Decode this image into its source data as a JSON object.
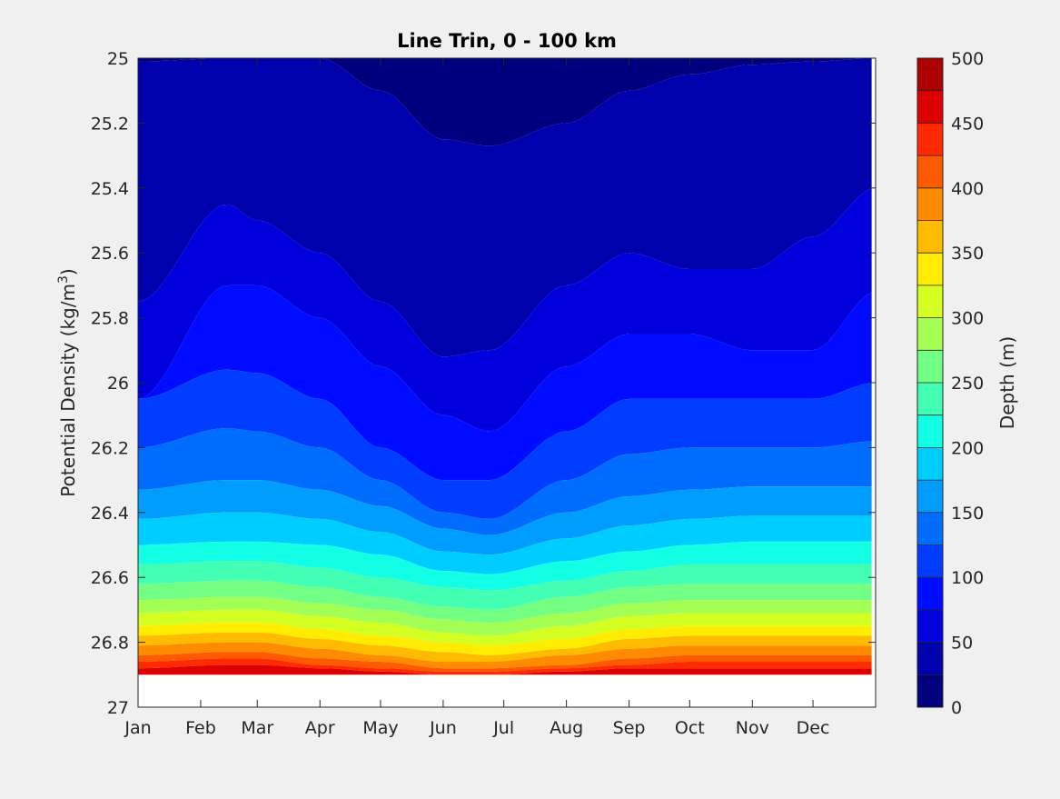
{
  "chart_data": {
    "type": "contour",
    "title": "Line Trin, 0 - 100 km",
    "ylabel": "Potential Density (kg/m",
    "ylabel_sup": "3",
    "ylabel_close": ")",
    "xlabel": "",
    "x_ticks": [
      "Jan",
      "Feb",
      "Mar",
      "Apr",
      "May",
      "Jun",
      "Jul",
      "Aug",
      "Sep",
      "Oct",
      "Nov",
      "Dec"
    ],
    "x_tick_days": [
      1,
      32,
      60,
      91,
      121,
      152,
      182,
      213,
      244,
      274,
      305,
      335
    ],
    "xlim": [
      1,
      366
    ],
    "y_ticks": [
      "25",
      "25.2",
      "25.4",
      "25.6",
      "25.8",
      "26",
      "26.2",
      "26.4",
      "26.6",
      "26.8",
      "27"
    ],
    "ylim": [
      25,
      27
    ],
    "y_reversed": true,
    "colorbar": {
      "label": "Depth (m)",
      "ticks": [
        "0",
        "50",
        "100",
        "150",
        "200",
        "250",
        "300",
        "350",
        "400",
        "450",
        "500"
      ],
      "range": [
        0,
        500
      ],
      "colors": [
        "#00007f",
        "#0000ad",
        "#0000dc",
        "#000cff",
        "#003dff",
        "#006dff",
        "#009dff",
        "#00cdff",
        "#12ffe5",
        "#43ffb4",
        "#73ff84",
        "#a3ff54",
        "#d4ff23",
        "#ffec00",
        "#ffbb00",
        "#ff8b00",
        "#ff5a00",
        "#ff2a00",
        "#dc0000",
        "#ad0000"
      ]
    },
    "contour_levels": [
      {
        "depth": 25,
        "density": [
          25.01,
          25.0,
          25.0,
          25.0,
          25.1,
          25.25,
          25.27,
          25.2,
          25.1,
          25.05,
          25.02,
          25.01,
          25.0
        ],
        "note": ""
      },
      {
        "depth": 50,
        "density": [
          25.75,
          25.45,
          25.5,
          25.6,
          25.75,
          25.92,
          25.9,
          25.7,
          25.6,
          25.65,
          25.65,
          25.55,
          25.4
        ]
      },
      {
        "depth": 75,
        "density": [
          26.05,
          25.7,
          25.7,
          25.8,
          25.95,
          26.1,
          26.15,
          25.95,
          25.85,
          25.85,
          25.9,
          25.9,
          25.72
        ]
      },
      {
        "depth": 100,
        "density": [
          26.05,
          25.96,
          25.97,
          26.05,
          26.2,
          26.3,
          26.3,
          26.15,
          26.05,
          26.05,
          26.05,
          26.05,
          26.0
        ]
      },
      {
        "depth": 125,
        "density": [
          26.2,
          26.14,
          26.15,
          26.2,
          26.3,
          26.4,
          26.42,
          26.3,
          26.22,
          26.2,
          26.2,
          26.2,
          26.18
        ]
      },
      {
        "depth": 150,
        "density": [
          26.33,
          26.3,
          26.3,
          26.33,
          26.38,
          26.45,
          26.47,
          26.4,
          26.35,
          26.33,
          26.32,
          26.32,
          26.32
        ]
      },
      {
        "depth": 175,
        "density": [
          26.42,
          26.4,
          26.4,
          26.42,
          26.46,
          26.52,
          26.53,
          26.48,
          26.44,
          26.42,
          26.41,
          26.41,
          26.41
        ]
      },
      {
        "depth": 200,
        "density": [
          26.5,
          26.49,
          26.49,
          26.5,
          26.53,
          26.58,
          26.59,
          26.55,
          26.52,
          26.5,
          26.49,
          26.49,
          26.49
        ]
      },
      {
        "depth": 225,
        "density": [
          26.56,
          26.55,
          26.55,
          26.57,
          26.6,
          26.63,
          26.64,
          26.61,
          26.58,
          26.56,
          26.56,
          26.56,
          26.56
        ]
      },
      {
        "depth": 250,
        "density": [
          26.62,
          26.61,
          26.61,
          26.63,
          26.66,
          26.69,
          26.7,
          26.66,
          26.63,
          26.62,
          26.62,
          26.62,
          26.62
        ]
      },
      {
        "depth": 275,
        "density": [
          26.67,
          26.66,
          26.66,
          26.68,
          26.7,
          26.73,
          26.74,
          26.71,
          26.68,
          26.67,
          26.67,
          26.67,
          26.67
        ]
      },
      {
        "depth": 300,
        "density": [
          26.71,
          26.7,
          26.7,
          26.72,
          26.74,
          26.77,
          26.78,
          26.75,
          26.72,
          26.71,
          26.71,
          26.71,
          26.71
        ]
      },
      {
        "depth": 325,
        "density": [
          26.75,
          26.74,
          26.74,
          26.76,
          26.78,
          26.8,
          26.81,
          26.79,
          26.76,
          26.75,
          26.75,
          26.75,
          26.75
        ]
      },
      {
        "depth": 350,
        "density": [
          26.78,
          26.77,
          26.77,
          26.79,
          26.81,
          26.83,
          26.84,
          26.82,
          26.79,
          26.78,
          26.78,
          26.78,
          26.78
        ]
      },
      {
        "depth": 375,
        "density": [
          26.81,
          26.8,
          26.8,
          26.82,
          26.84,
          26.86,
          26.86,
          26.84,
          26.82,
          26.81,
          26.81,
          26.81,
          26.81
        ]
      },
      {
        "depth": 400,
        "density": [
          26.84,
          26.83,
          26.83,
          26.85,
          26.86,
          26.88,
          26.88,
          26.87,
          26.85,
          26.84,
          26.84,
          26.84,
          26.84
        ]
      },
      {
        "depth": 425,
        "density": [
          26.86,
          26.85,
          26.85,
          26.87,
          26.88,
          26.89,
          26.89,
          26.88,
          26.87,
          26.86,
          26.86,
          26.86,
          26.86
        ]
      },
      {
        "depth": 450,
        "density": [
          26.88,
          26.87,
          26.87,
          26.88,
          26.89,
          26.9,
          26.9,
          26.89,
          26.88,
          26.88,
          26.88,
          26.88,
          26.88
        ]
      },
      {
        "depth": 475,
        "density": [
          26.9,
          26.9,
          26.9,
          26.9,
          26.9,
          26.9,
          26.9,
          26.9,
          26.9,
          26.9,
          26.9,
          26.9,
          26.9
        ]
      }
    ],
    "profile_days": [
      1,
      45,
      60,
      91,
      121,
      152,
      175,
      213,
      244,
      274,
      305,
      335,
      366
    ],
    "data_floor_density": 26.9
  }
}
